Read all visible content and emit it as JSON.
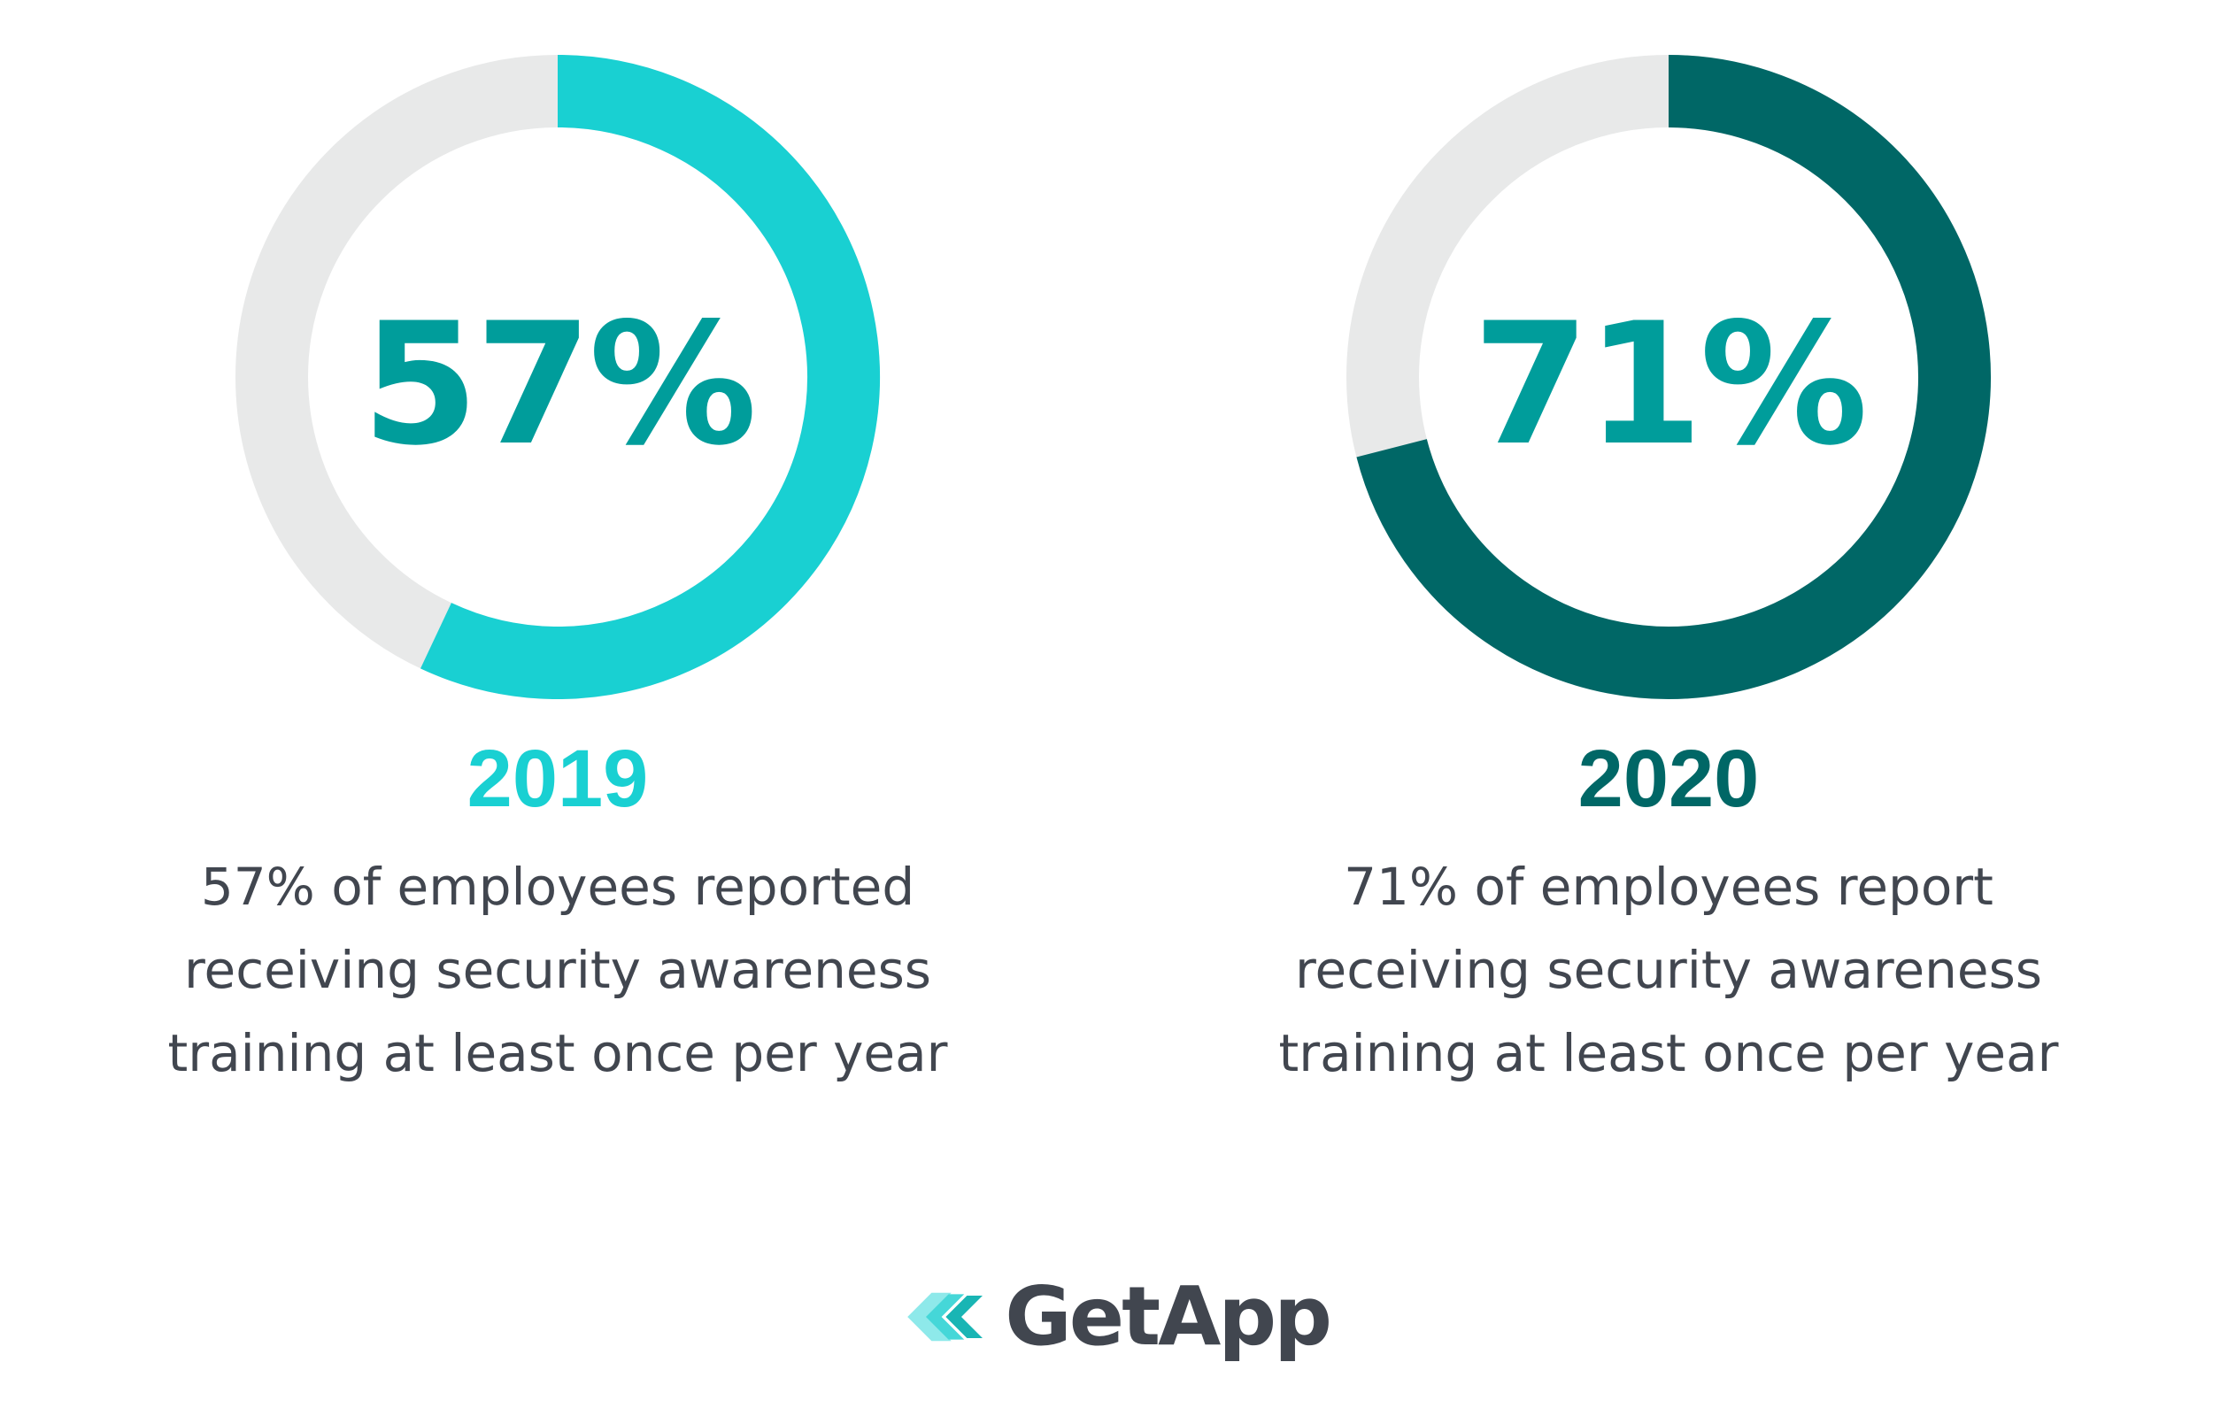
{
  "chart_data": [
    {
      "type": "pie",
      "year": "2019",
      "value": 57,
      "max": 100,
      "center_label": "57%",
      "description_lines": [
        "57% of employees reported",
        "receiving security awareness",
        "training at least once per year"
      ],
      "colors": {
        "fill": "#19d0d2",
        "track": "#e8e9e9",
        "value_text": "#009d9b",
        "year_text": "#19d0d2"
      }
    },
    {
      "type": "pie",
      "year": "2020",
      "value": 71,
      "max": 100,
      "center_label": "71%",
      "description_lines": [
        "71% of employees report",
        "receiving security awareness",
        "training at least once per year"
      ],
      "colors": {
        "fill": "#006766",
        "track": "#e8e9e9",
        "value_text": "#009d9b",
        "year_text": "#006766"
      }
    }
  ],
  "brand": {
    "name": "GetApp",
    "logo_icon": "getapp-chevrons-icon",
    "colors": {
      "text": "#41464f",
      "light": "#8ee9ea",
      "mid": "#45d7d8",
      "dark": "#19b5b4"
    }
  }
}
